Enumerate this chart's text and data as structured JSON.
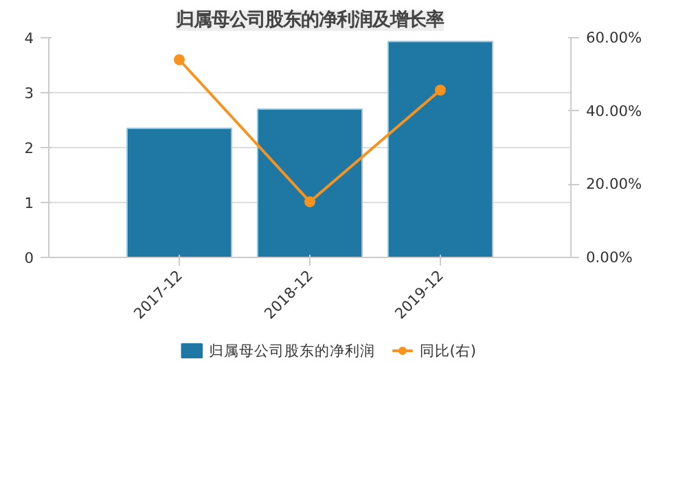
{
  "chart_data": {
    "type": "bar",
    "title": "归属母公司股东的净利润及增长率",
    "categories": [
      "2017-12",
      "2018-12",
      "2019-12"
    ],
    "series": [
      {
        "name": "归属母公司股东的净利润",
        "type": "bar",
        "color": "#1f77a4",
        "values": [
          2.35,
          2.7,
          3.93
        ]
      },
      {
        "name": "同比(右)",
        "type": "line",
        "axis": "y2",
        "color": "#f7931e",
        "marker": "circle",
        "values": [
          54,
          15.2,
          45.7
        ]
      }
    ],
    "ylim": [
      0,
      4
    ],
    "yticks": [
      0,
      1,
      2,
      3,
      4
    ],
    "y2lim": [
      0,
      60
    ],
    "y2ticks": [
      {
        "value": 0,
        "label": "0.00%"
      },
      {
        "value": 20,
        "label": "20.00%"
      },
      {
        "value": 40,
        "label": "40.00%"
      },
      {
        "value": 60,
        "label": "60.00%"
      }
    ],
    "grid": "y",
    "legend": "bottom"
  }
}
